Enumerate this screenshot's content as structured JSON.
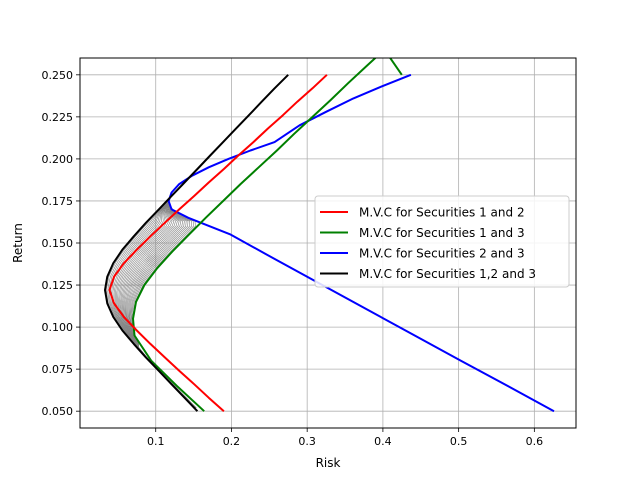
{
  "chart_data": {
    "type": "line",
    "xlabel": "Risk",
    "ylabel": "Return",
    "xlim": [
      0.0,
      0.655
    ],
    "ylim": [
      0.04,
      0.26
    ],
    "xticks": [
      0.1,
      0.2,
      0.3,
      0.4,
      0.5,
      0.6
    ],
    "xtick_labels": [
      "0.1",
      "0.2",
      "0.3",
      "0.4",
      "0.5",
      "0.6"
    ],
    "yticks": [
      0.05,
      0.075,
      0.1,
      0.125,
      0.15,
      0.175,
      0.2,
      0.225,
      0.25
    ],
    "ytick_labels": [
      "0.050",
      "0.075",
      "0.100",
      "0.125",
      "0.150",
      "0.175",
      "0.200",
      "0.225",
      "0.250"
    ],
    "grid": true,
    "legend_position": "center-right",
    "series": [
      {
        "name": "M.V.C for Securities 1 and 2",
        "color": "#ff0000",
        "x": [
          0.19,
          0.17,
          0.151,
          0.131,
          0.112,
          0.093,
          0.075,
          0.058,
          0.045,
          0.039,
          0.045,
          0.058,
          0.075,
          0.093,
          0.112,
          0.131,
          0.151,
          0.17,
          0.19,
          0.209,
          0.229,
          0.248,
          0.268,
          0.287,
          0.307,
          0.326
        ],
        "y": [
          0.05,
          0.058,
          0.066,
          0.074,
          0.082,
          0.09,
          0.098,
          0.106,
          0.114,
          0.122,
          0.13,
          0.138,
          0.146,
          0.154,
          0.162,
          0.17,
          0.178,
          0.186,
          0.194,
          0.202,
          0.21,
          0.218,
          0.226,
          0.234,
          0.242,
          0.25
        ]
      },
      {
        "name": "M.V.C for Securities 1 and 3",
        "color": "#008000",
        "x": [
          0.164,
          0.128,
          0.094,
          0.072,
          0.07,
          0.074,
          0.085,
          0.102,
          0.122,
          0.144,
          0.166,
          0.189,
          0.212,
          0.236,
          0.26,
          0.283,
          0.307,
          0.331,
          0.354,
          0.378,
          0.402,
          0.425
        ],
        "y": [
          0.05,
          0.065,
          0.08,
          0.095,
          0.105,
          0.115,
          0.125,
          0.135,
          0.145,
          0.155,
          0.165,
          0.175,
          0.185,
          0.195,
          0.205,
          0.215,
          0.225,
          0.235,
          0.245,
          0.255,
          0.265,
          0.25
        ]
      },
      {
        "name": "M.V.C for Securities 2 and 3",
        "color": "#0000ff",
        "x": [
          0.626,
          0.565,
          0.503,
          0.442,
          0.381,
          0.32,
          0.259,
          0.199,
          0.143,
          0.121,
          0.117,
          0.121,
          0.131,
          0.148,
          0.17,
          0.196,
          0.225,
          0.257,
          0.29,
          0.325,
          0.361,
          0.398,
          0.437
        ],
        "y": [
          0.05,
          0.065,
          0.08,
          0.095,
          0.11,
          0.125,
          0.14,
          0.155,
          0.165,
          0.17,
          0.175,
          0.18,
          0.185,
          0.19,
          0.195,
          0.2,
          0.205,
          0.21,
          0.22,
          0.228,
          0.236,
          0.243,
          0.25
        ]
      },
      {
        "name": "M.V.C for Securities 1,2 and 3",
        "color": "#000000",
        "x": [
          0.155,
          0.138,
          0.121,
          0.104,
          0.087,
          0.071,
          0.056,
          0.044,
          0.036,
          0.033,
          0.036,
          0.044,
          0.056,
          0.071,
          0.087,
          0.104,
          0.121,
          0.138,
          0.155,
          0.172,
          0.189,
          0.206,
          0.223,
          0.24,
          0.257,
          0.275
        ],
        "y": [
          0.05,
          0.058,
          0.066,
          0.074,
          0.082,
          0.09,
          0.098,
          0.106,
          0.114,
          0.122,
          0.13,
          0.138,
          0.146,
          0.154,
          0.162,
          0.17,
          0.178,
          0.186,
          0.194,
          0.202,
          0.21,
          0.218,
          0.226,
          0.234,
          0.242,
          0.25
        ]
      }
    ],
    "background_curves": {
      "color": "#808080",
      "description_note": "",
      "count": 0
    }
  }
}
